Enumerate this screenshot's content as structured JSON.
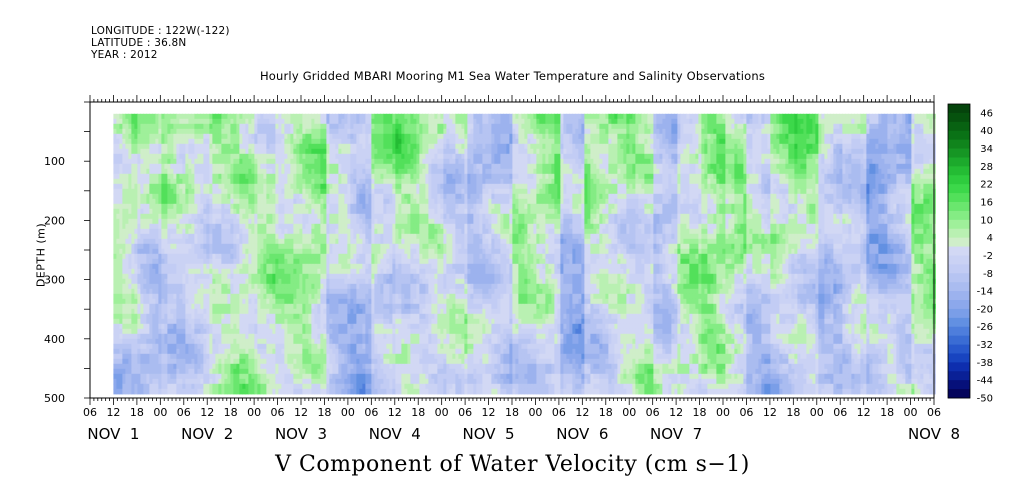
{
  "meta": {
    "longitude": "LONGITUDE : 122W(-122)",
    "latitude": "LATITUDE : 36.8N",
    "year": "YEAR : 2012"
  },
  "chart_data": {
    "type": "heatmap",
    "title": "Hourly Gridded MBARI Mooring M1 Sea Water Temperature and Salinity Observations",
    "xlabel": "V Component of Water Velocity (cm s−1)",
    "ylabel": "DEPTH (m)",
    "ylim": [
      500,
      0
    ],
    "yticks": [
      "100",
      "200",
      "300",
      "400",
      "500"
    ],
    "x_hour_ticks": [
      "06",
      "12",
      "18",
      "00",
      "06",
      "12",
      "18",
      "00",
      "06",
      "12",
      "18",
      "00",
      "06",
      "12",
      "18",
      "00",
      "06",
      "12",
      "18",
      "00",
      "06",
      "12",
      "18",
      "00",
      "06",
      "12",
      "18",
      "00",
      "06",
      "12",
      "18",
      "00",
      "06",
      "12",
      "18",
      "00",
      "06"
    ],
    "x_day_labels": [
      "NOV  1",
      "NOV  2",
      "NOV  3",
      "NOV  4",
      "NOV  5",
      "NOV  6",
      "NOV  7",
      "NOV  8"
    ],
    "data_range": {
      "x_start": "NOV 1 12:00",
      "x_end": "NOV 8 06:00",
      "depth_top": 20,
      "depth_bottom": 485
    },
    "colorbar": {
      "labels": [
        "46",
        "40",
        "34",
        "28",
        "22",
        "16",
        "10",
        "4",
        "-2",
        "-8",
        "-14",
        "-20",
        "-26",
        "-32",
        "-38",
        "-44",
        "-50"
      ],
      "levels": [
        -50,
        -47,
        -44,
        -41,
        -38,
        -35,
        -32,
        -29,
        -26,
        -23,
        -20,
        -17,
        -14,
        -11,
        -8,
        -5,
        -2,
        1,
        4,
        7,
        10,
        13,
        16,
        19,
        22,
        25,
        28,
        31,
        34,
        37,
        40,
        43,
        46,
        49
      ],
      "colors": [
        "#04045c",
        "#06107a",
        "#0a2096",
        "#0e2eae",
        "#1844c0",
        "#2858cc",
        "#3a6cd4",
        "#4e7edc",
        "#6290e2",
        "#7a9ee8",
        "#8ca8ec",
        "#9cb2ee",
        "#aabcf0",
        "#b6c4f2",
        "#c2ccf4",
        "#cad2f4",
        "#d2d8f4",
        "#cfeec9",
        "#b9f0b2",
        "#9ff09a",
        "#84ec84",
        "#6ae66e",
        "#52e05a",
        "#3cd84a",
        "#2ecc3e",
        "#24bc34",
        "#1caa2c",
        "#169624",
        "#10841c",
        "#0a7216",
        "#086212",
        "#06520e",
        "#05440c"
      ],
      "representative": {
        "positive_hue": "green",
        "negative_hue": "blue-violet",
        "near_zero": "pale"
      }
    },
    "summary": {
      "description_values_range": [
        -20,
        20
      ],
      "dominant_bands": [
        {
          "day": "NOV 1 12:00 - NOV 2 06:00",
          "tendency": "mixed, blue at depth"
        },
        {
          "day": "NOV 2 06:00 - NOV 3 06:00",
          "tendency": "green (northward)"
        },
        {
          "day": "NOV 3 06:00 - NOV 3 18:00",
          "tendency": "blue columns"
        },
        {
          "day": "NOV 4",
          "tendency": "green upper, blue lower"
        },
        {
          "day": "NOV 5",
          "tendency": "blue columns with green"
        },
        {
          "day": "NOV 6",
          "tendency": "green upper"
        },
        {
          "day": "NOV 7",
          "tendency": "mixed"
        },
        {
          "day": "NOV 7 18:00 - NOV 8 06:00",
          "tendency": "blue column then green"
        }
      ]
    }
  }
}
